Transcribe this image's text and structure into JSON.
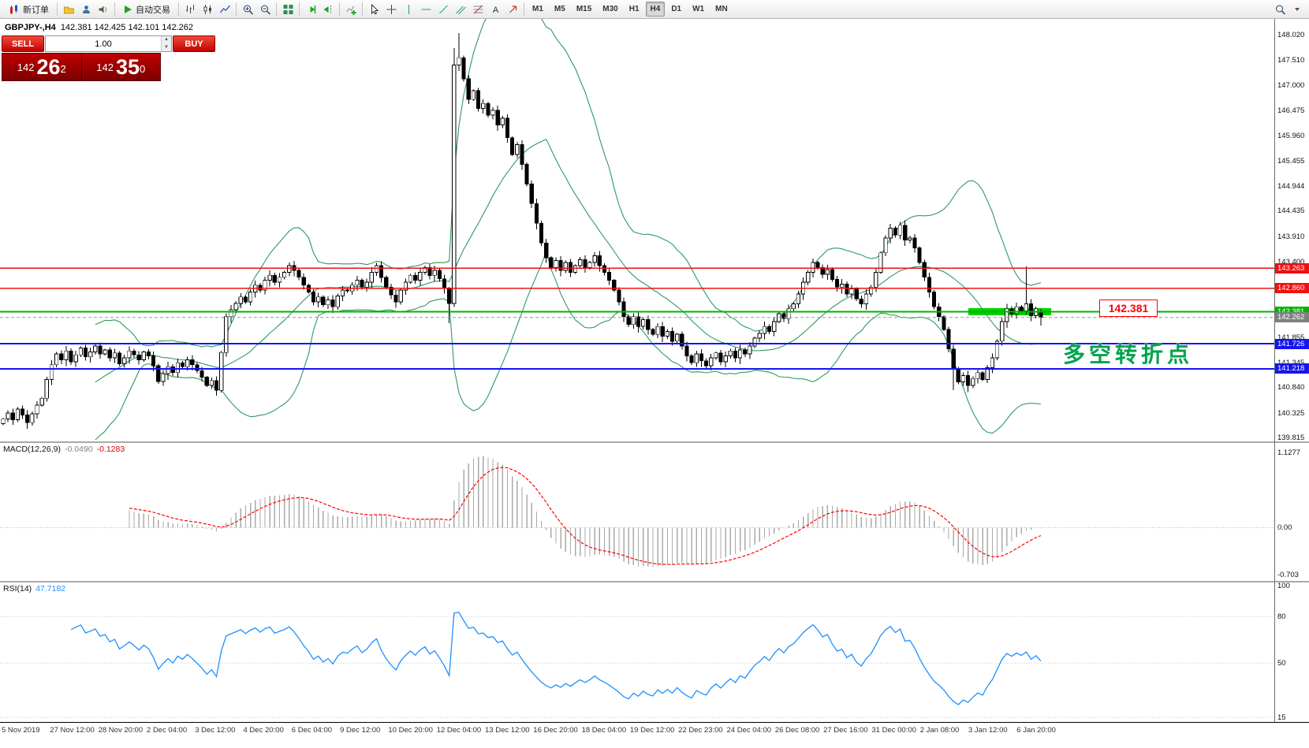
{
  "toolbar": {
    "new_order_label": "新订单",
    "autotrading_label": "自动交易",
    "timeframes": [
      "M1",
      "M5",
      "M15",
      "M30",
      "H1",
      "H4",
      "D1",
      "W1",
      "MN"
    ],
    "active_timeframe": "H4"
  },
  "trade_panel": {
    "sell_label": "SELL",
    "buy_label": "BUY",
    "volume": "1.00",
    "sell_big": "142",
    "sell_pips": "26",
    "sell_sup": "2",
    "buy_big": "142",
    "buy_pips": "35",
    "buy_sup": "0"
  },
  "chart": {
    "symbol_title": "GBPJPY-,H4",
    "ohlc_text": "142.381 142.425 142.101 142.262",
    "annotation": "多空转折点",
    "price_box": "142.381"
  },
  "indicators": {
    "macd": {
      "name": "MACD(12,26,9)",
      "value_main": "-0.0490",
      "value_signal": "-0.1283",
      "axis_max": "1.1277",
      "axis_zero": "0.00",
      "axis_min": "-0.703"
    },
    "rsi": {
      "name": "RSI(14)",
      "value": "47.7182",
      "axis": [
        "100",
        "80",
        "50",
        "15"
      ]
    }
  },
  "chart_data": {
    "type": "candlestick",
    "symbol": "GBPJPY-",
    "timeframe": "H4",
    "title": "GBPJPY-,H4",
    "ylim": [
      139.74,
      148.34
    ],
    "price_scale": [
      "148.020",
      "147.510",
      "147.000",
      "146.475",
      "145.960",
      "145.455",
      "144.944",
      "144.435",
      "143.910",
      "143.400",
      "141.855",
      "141.345",
      "140.840",
      "140.325",
      "139.815"
    ],
    "hlines": [
      {
        "price": 143.263,
        "color": "#ee1111",
        "w": 1.5,
        "label": "143.263"
      },
      {
        "price": 142.86,
        "color": "#ee1111",
        "w": 1.5,
        "label": "142.860"
      },
      {
        "price": 142.381,
        "color": "#00b400",
        "w": 2.0,
        "label": "142.381"
      },
      {
        "price": 141.726,
        "color": "#1515ee",
        "w": 2.0,
        "label": "141.726"
      },
      {
        "price": 141.218,
        "color": "#1515ee",
        "w": 2.0,
        "label": "141.218"
      }
    ],
    "current_price": {
      "value": 142.262,
      "label": "142.262",
      "color": "#808080"
    },
    "highlight_zone": {
      "price": 142.381,
      "x0": 1228,
      "x1": 1333,
      "color": "#00d000"
    },
    "first_open": 140.1,
    "closes": [
      140.2,
      140.32,
      140.18,
      140.4,
      140.28,
      140.12,
      140.3,
      140.48,
      140.62,
      141.0,
      141.3,
      141.52,
      141.4,
      141.58,
      141.36,
      141.5,
      141.64,
      141.46,
      141.56,
      141.68,
      141.52,
      141.6,
      141.44,
      141.54,
      141.32,
      141.44,
      141.58,
      141.5,
      141.4,
      141.56,
      141.48,
      141.28,
      140.96,
      141.12,
      141.26,
      141.14,
      141.34,
      141.26,
      141.4,
      141.3,
      141.18,
      141.05,
      140.88,
      140.98,
      140.78,
      141.55,
      142.28,
      142.42,
      142.55,
      142.68,
      142.58,
      142.78,
      142.92,
      142.82,
      143.02,
      143.12,
      142.98,
      143.08,
      143.18,
      143.32,
      143.22,
      143.08,
      142.92,
      142.78,
      142.58,
      142.68,
      142.52,
      142.62,
      142.48,
      142.7,
      142.82,
      142.8,
      142.92,
      143.02,
      142.88,
      142.98,
      143.18,
      143.32,
      143.08,
      142.88,
      142.72,
      142.58,
      142.82,
      142.98,
      143.12,
      143.02,
      143.18,
      143.28,
      143.12,
      143.22,
      143.05,
      142.85,
      142.55,
      147.4,
      147.55,
      147.12,
      146.7,
      146.88,
      146.52,
      146.62,
      146.38,
      146.48,
      146.18,
      146.32,
      145.92,
      145.58,
      145.78,
      145.38,
      144.98,
      144.58,
      144.18,
      143.78,
      143.48,
      143.28,
      143.42,
      143.22,
      143.38,
      143.18,
      143.32,
      143.44,
      143.28,
      143.38,
      143.52,
      143.32,
      143.18,
      143.02,
      142.82,
      142.58,
      142.28,
      142.12,
      142.28,
      142.08,
      142.22,
      142.02,
      141.92,
      142.08,
      141.88,
      141.98,
      141.78,
      141.92,
      141.68,
      141.48,
      141.34,
      141.52,
      141.38,
      141.28,
      141.44,
      141.54,
      141.36,
      141.48,
      141.58,
      141.44,
      141.6,
      141.52,
      141.68,
      141.84,
      141.94,
      142.08,
      141.98,
      142.18,
      142.34,
      142.24,
      142.44,
      142.54,
      142.74,
      142.98,
      143.18,
      143.38,
      143.28,
      143.14,
      143.24,
      143.04,
      142.88,
      142.94,
      142.74,
      142.84,
      142.64,
      142.54,
      142.74,
      142.88,
      143.18,
      143.58,
      143.88,
      144.08,
      143.94,
      144.14,
      143.84,
      143.88,
      143.68,
      143.38,
      143.08,
      142.78,
      142.48,
      142.28,
      142.02,
      141.62,
      141.22,
      140.95,
      141.08,
      140.88,
      141.02,
      141.14,
      141.0,
      141.24,
      141.44,
      141.78,
      142.18,
      142.44,
      142.34,
      142.48,
      142.4,
      142.54,
      142.3,
      142.44,
      142.262
    ],
    "overrides": {
      "92": {
        "l": 142.15
      },
      "93": {
        "h": 147.75
      },
      "94": {
        "h": 148.05
      },
      "196": {
        "l": 140.78
      },
      "199": {
        "l": 140.74
      },
      "211": {
        "h": 143.3
      },
      "214": {
        "o": 142.381,
        "h": 142.425,
        "l": 142.101,
        "c": 142.262
      }
    },
    "bollinger": {
      "period": 20,
      "deviation": 2,
      "color": "#2f9a5d"
    },
    "macd": {
      "fast": 12,
      "slow": 26,
      "signal": 9,
      "ylim": [
        -0.8,
        1.27
      ],
      "histogram_color": "#aaaaaa",
      "signal_color": "#ff0000"
    },
    "rsi": {
      "period": 14,
      "ylim": [
        12,
        102
      ],
      "color": "#1e90ff",
      "levels": [
        80,
        50,
        15
      ]
    },
    "time_labels": [
      "5 Nov 2019",
      "27 Nov 12:00",
      "28 Nov 20:00",
      "2 Dec 04:00",
      "3 Dec 12:00",
      "4 Dec 20:00",
      "6 Dec 04:00",
      "9 Dec 12:00",
      "10 Dec 20:00",
      "12 Dec 04:00",
      "13 Dec 12:00",
      "16 Dec 20:00",
      "18 Dec 04:00",
      "19 Dec 12:00",
      "22 Dec 23:00",
      "24 Dec 04:00",
      "26 Dec 08:00",
      "27 Dec 16:00",
      "31 Dec 00:00",
      "2 Jan 08:00",
      "3 Jan 12:00",
      "6 Jan 20:00"
    ]
  }
}
